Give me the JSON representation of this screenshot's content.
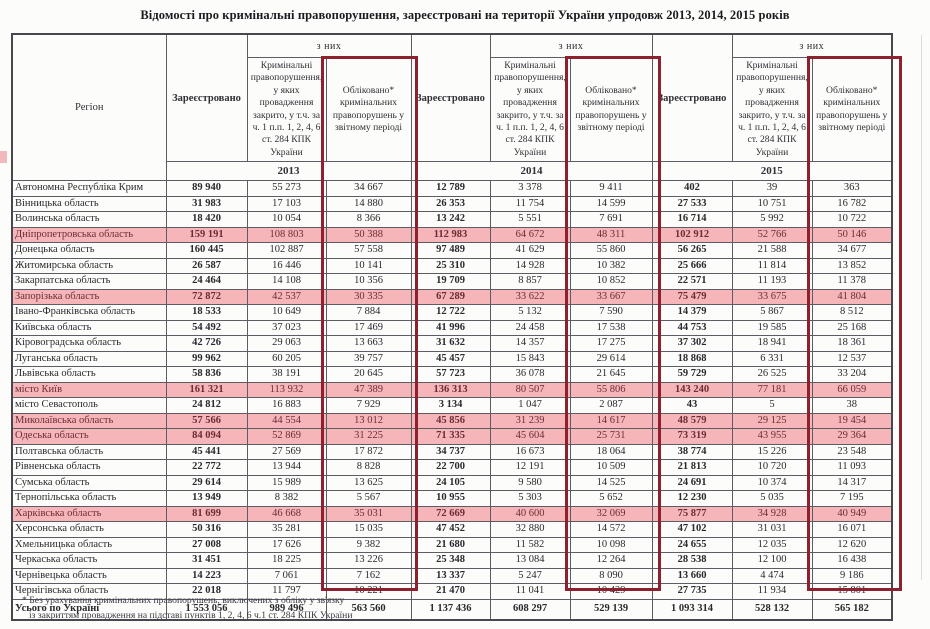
{
  "title": "Відомості про кримінальні правопорушення, зареєстровані на території України упродовж 2013, 2014, 2015 років",
  "colors": {
    "row_highlight": "#f6b5b9",
    "row_highlight_text": "#6b2c34",
    "marker_box": "#8d2130"
  },
  "table": {
    "region_header": "Регіон",
    "registered_label": "Зареєстровано",
    "of_them_label": "з них",
    "closed_label": "Кримінальні правопорушення, у яких провадження закрито, у т.ч. за ч. 1 п.п. 1, 2, 4, 6 ст. 284 КПК України",
    "accounted_label": "Обліковано* кримінальних правопорушень у звітному періоді",
    "years": [
      "2013",
      "2014",
      "2015"
    ],
    "rows": [
      {
        "region": "Автономна Республіка Крим",
        "highlight": false,
        "values": [
          "89 940",
          "55 273",
          "34 667",
          "12 789",
          "3 378",
          "9 411",
          "402",
          "39",
          "363"
        ]
      },
      {
        "region": "Вінницька область",
        "highlight": false,
        "values": [
          "31 983",
          "17 103",
          "14 880",
          "26 353",
          "11 754",
          "14 599",
          "27 533",
          "10 751",
          "16 782"
        ]
      },
      {
        "region": "Волинська область",
        "highlight": false,
        "values": [
          "18 420",
          "10 054",
          "8 366",
          "13 242",
          "5 551",
          "7 691",
          "16 714",
          "5 992",
          "10 722"
        ]
      },
      {
        "region": "Дніпропетровська область",
        "highlight": true,
        "values": [
          "159 191",
          "108 803",
          "50 388",
          "112 983",
          "64 672",
          "48 311",
          "102 912",
          "52 766",
          "50 146"
        ]
      },
      {
        "region": "Донецька область",
        "highlight": false,
        "values": [
          "160 445",
          "102 887",
          "57 558",
          "97 489",
          "41 629",
          "55 860",
          "56 265",
          "21 588",
          "34 677"
        ]
      },
      {
        "region": "Житомирська область",
        "highlight": false,
        "values": [
          "26 587",
          "16 446",
          "10 141",
          "25 310",
          "14 928",
          "10 382",
          "25 666",
          "11 814",
          "13 852"
        ]
      },
      {
        "region": "Закарпатська область",
        "highlight": false,
        "values": [
          "24 464",
          "14 108",
          "10 356",
          "19 709",
          "8 857",
          "10 852",
          "22 571",
          "11 193",
          "11 378"
        ]
      },
      {
        "region": "Запорізька область",
        "highlight": true,
        "values": [
          "72 872",
          "42 537",
          "30 335",
          "67 289",
          "33 622",
          "33 667",
          "75 479",
          "33 675",
          "41 804"
        ]
      },
      {
        "region": "Івано-Франківська область",
        "highlight": false,
        "values": [
          "18 533",
          "10 649",
          "7 884",
          "12 722",
          "5 132",
          "7 590",
          "14 379",
          "5 867",
          "8 512"
        ]
      },
      {
        "region": "Київська область",
        "highlight": false,
        "values": [
          "54 492",
          "37 023",
          "17 469",
          "41 996",
          "24 458",
          "17 538",
          "44 753",
          "19 585",
          "25 168"
        ]
      },
      {
        "region": "Кіровоградська область",
        "highlight": false,
        "values": [
          "42 726",
          "29 063",
          "13 663",
          "31 632",
          "14 357",
          "17 275",
          "37 302",
          "18 941",
          "18 361"
        ]
      },
      {
        "region": "Луганська область",
        "highlight": false,
        "values": [
          "99 962",
          "60 205",
          "39 757",
          "45 457",
          "15 843",
          "29 614",
          "18 868",
          "6 331",
          "12 537"
        ]
      },
      {
        "region": "Львівська область",
        "highlight": false,
        "values": [
          "58 836",
          "38 191",
          "20 645",
          "57 723",
          "36 078",
          "21 645",
          "59 729",
          "26 525",
          "33 204"
        ]
      },
      {
        "region": "місто Київ",
        "highlight": true,
        "values": [
          "161 321",
          "113 932",
          "47 389",
          "136 313",
          "80 507",
          "55 806",
          "143 240",
          "77 181",
          "66 059"
        ]
      },
      {
        "region": "місто Севастополь",
        "highlight": false,
        "values": [
          "24 812",
          "16 883",
          "7 929",
          "3 134",
          "1 047",
          "2 087",
          "43",
          "5",
          "38"
        ]
      },
      {
        "region": "Миколаївська область",
        "highlight": true,
        "values": [
          "57 566",
          "44 554",
          "13 012",
          "45 856",
          "31 239",
          "14 617",
          "48 579",
          "29 125",
          "19 454"
        ]
      },
      {
        "region": "Одеська область",
        "highlight": true,
        "values": [
          "84 094",
          "52 869",
          "31 225",
          "71 335",
          "45 604",
          "25 731",
          "73 319",
          "43 955",
          "29 364"
        ]
      },
      {
        "region": "Полтавська область",
        "highlight": false,
        "values": [
          "45 441",
          "27 569",
          "17 872",
          "34 737",
          "16 673",
          "18 064",
          "38 774",
          "15 226",
          "23 548"
        ]
      },
      {
        "region": "Рівненська область",
        "highlight": false,
        "values": [
          "22 772",
          "13 944",
          "8 828",
          "22 700",
          "12 191",
          "10 509",
          "21 813",
          "10 720",
          "11 093"
        ]
      },
      {
        "region": "Сумська область",
        "highlight": false,
        "values": [
          "29 614",
          "15 989",
          "13 625",
          "24 105",
          "9 580",
          "14 525",
          "24 691",
          "10 374",
          "14 317"
        ]
      },
      {
        "region": "Тернопільська область",
        "highlight": false,
        "values": [
          "13 949",
          "8 382",
          "5 567",
          "10 955",
          "5 303",
          "5 652",
          "12 230",
          "5 035",
          "7 195"
        ]
      },
      {
        "region": "Харківська область",
        "highlight": true,
        "values": [
          "81 699",
          "46 668",
          "35 031",
          "72 669",
          "40 600",
          "32 069",
          "75 877",
          "34 928",
          "40 949"
        ]
      },
      {
        "region": "Херсонська область",
        "highlight": false,
        "values": [
          "50 316",
          "35 281",
          "15 035",
          "47 452",
          "32 880",
          "14 572",
          "47 102",
          "31 031",
          "16 071"
        ]
      },
      {
        "region": "Хмельницька область",
        "highlight": false,
        "values": [
          "27 008",
          "17 626",
          "9 382",
          "21 680",
          "11 582",
          "10 098",
          "24 655",
          "12 035",
          "12 620"
        ]
      },
      {
        "region": "Черкаська область",
        "highlight": false,
        "values": [
          "31 451",
          "18 225",
          "13 226",
          "25 348",
          "13 084",
          "12 264",
          "28 538",
          "12 100",
          "16 438"
        ]
      },
      {
        "region": "Чернівецька область",
        "highlight": false,
        "values": [
          "14 223",
          "7 061",
          "7 162",
          "13 337",
          "5 247",
          "8 090",
          "13 660",
          "4 474",
          "9 186"
        ]
      },
      {
        "region": "Чернігівська область",
        "highlight": false,
        "values": [
          "22 018",
          "11 797",
          "10 221",
          "21 470",
          "11 041",
          "10 429",
          "27 735",
          "11 934",
          "15 801"
        ]
      }
    ],
    "total": {
      "region": "Усього по Україні",
      "values": [
        "1 553 056",
        "989 496",
        "563 560",
        "1 137 436",
        "608 297",
        "529 139",
        "1 093 314",
        "528 132",
        "565 182"
      ]
    }
  },
  "footnote": {
    "line1": "* Без урахування кримінальних правопорушень, виключених з обліку у зв'язку",
    "line2": "із закриттям провадження на підставі пунктів 1, 2, 4, 6 ч.1 ст. 284 КПК України"
  }
}
